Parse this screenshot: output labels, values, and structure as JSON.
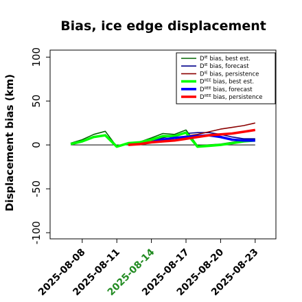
{
  "chart_data": {
    "type": "line",
    "title": "Bias, ice edge displacement",
    "ylabel": "Displacement bias (km)",
    "xlabel": "",
    "ylim": [
      -107,
      108
    ],
    "yticks": [
      -100,
      -50,
      0,
      50,
      100
    ],
    "x_dates": [
      "2025-08-07",
      "2025-08-08",
      "2025-08-09",
      "2025-08-10",
      "2025-08-11",
      "2025-08-12",
      "2025-08-13",
      "2025-08-14",
      "2025-08-15",
      "2025-08-16",
      "2025-08-17",
      "2025-08-18",
      "2025-08-19",
      "2025-08-20",
      "2025-08-21",
      "2025-08-22",
      "2025-08-23"
    ],
    "xticks": [
      "2025-08-08",
      "2025-08-11",
      "2025-08-14",
      "2025-08-17",
      "2025-08-20",
      "2025-08-23"
    ],
    "xtick_colors": [
      "#000000",
      "#000000",
      "#228b22",
      "#000000",
      "#000000",
      "#000000"
    ],
    "zero_line": true,
    "grid": false,
    "legend_position": "top-right",
    "series": [
      {
        "name": "D bias, best est.",
        "sup": "IE",
        "color": "#006400",
        "width": 1.6,
        "values": [
          2,
          6,
          12,
          15.5,
          -2,
          2,
          3.5,
          8,
          13,
          12,
          17,
          -1,
          0,
          1,
          3,
          5,
          6
        ]
      },
      {
        "name": "D bias, forecast",
        "sup": "IE",
        "color": "#00008b",
        "width": 1.6,
        "values": [
          null,
          null,
          null,
          null,
          null,
          null,
          null,
          5,
          8,
          11,
          13,
          14,
          14,
          12,
          9,
          7,
          7
        ]
      },
      {
        "name": "D bias, persistence",
        "sup": "IE",
        "color": "#8b0000",
        "width": 1.6,
        "values": [
          null,
          null,
          null,
          null,
          null,
          0,
          1,
          3,
          6,
          8,
          10,
          12,
          15,
          18,
          20,
          22,
          25
        ]
      },
      {
        "name": "D bias, best est.",
        "sup": "IIEE",
        "color": "#00ff00",
        "width": 3.6,
        "values": [
          1,
          4,
          9,
          11,
          -2,
          2,
          3,
          6,
          10,
          10,
          14,
          -2,
          -1,
          0,
          2,
          4,
          5
        ]
      },
      {
        "name": "D bias, forecast",
        "sup": "IIEE",
        "color": "#0000ff",
        "width": 3.6,
        "values": [
          null,
          null,
          null,
          null,
          null,
          null,
          null,
          3,
          6,
          8,
          9,
          10,
          11,
          9,
          6,
          5,
          5
        ]
      },
      {
        "name": "D bias, persistence",
        "sup": "IIEE",
        "color": "#ff0000",
        "width": 3.6,
        "values": [
          null,
          null,
          null,
          null,
          null,
          0,
          1,
          3,
          4,
          5,
          7,
          9,
          11,
          12,
          13,
          15,
          17
        ]
      }
    ]
  }
}
